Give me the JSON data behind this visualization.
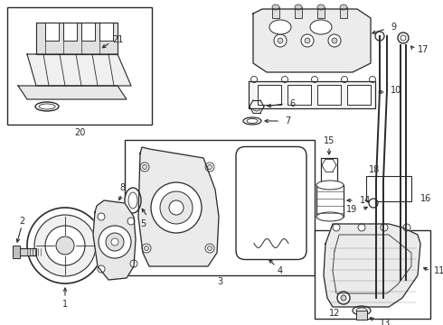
{
  "bg_color": "#ffffff",
  "lc": "#2a2a2a",
  "fig_width": 4.9,
  "fig_height": 3.6,
  "dpi": 100
}
